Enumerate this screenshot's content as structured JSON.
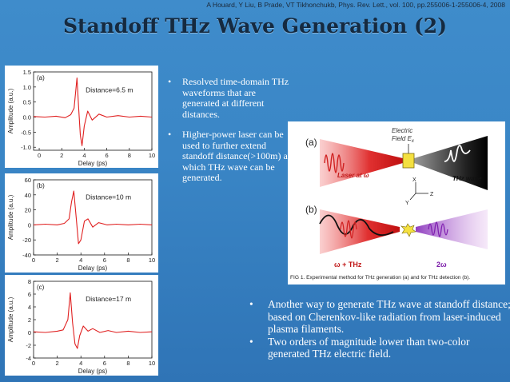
{
  "citation": "A Houard, Y Liu, B Prade, VT Tikhonchukb, Phys. Rev. Lett., vol.  100, pp.255006-1-255006-4, 2008",
  "title": "Standoff THz Wave Generation (2)",
  "bullets_top": [
    "Resolved time-domain THz waveforms that are generated at different distances.",
    "Higher-power laser can be used to further extend standoff distance(>100m) at which THz wave can be generated."
  ],
  "bullets_bottom": [
    "Another way to generate THz wave at standoff distance; based on Cherenkov-like radiation from laser-induced plasma filaments.",
    "Two orders of magnitude lower than two-color generated THz electric field."
  ],
  "bullet_symbol": "•",
  "colors": {
    "background": "#3a86c6",
    "title": "#152a40",
    "trace": "#e02020",
    "beam": "#e63030"
  },
  "figure": {
    "panel_a": "(a)",
    "panel_b": "(b)",
    "field_label_1": "Electric",
    "field_label_2": "Field E",
    "field_subscript": "x",
    "laser_label": "Laser at ω",
    "thz_label": "THz wave",
    "axis_x": "X",
    "axis_y": "Y",
    "axis_z": "Z",
    "omega_thz": "ω + THz",
    "two_omega": "2ω",
    "caption": "FIG 1. Experimental method for THz generation (a) and for THz detection (b)."
  },
  "chart_data": [
    {
      "type": "line",
      "panel": "(a)",
      "annotation": "Distance=6.5 m",
      "xlabel": "Delay (ps)",
      "ylabel": "Amplitude (a.u.)",
      "xlim": [
        -0.5,
        10
      ],
      "ylim": [
        -1.1,
        1.5
      ],
      "xticks": [
        "0",
        "2",
        "4",
        "6",
        "8",
        "10"
      ],
      "yticks": [
        "1.5",
        "1.0",
        "0.5",
        "0.0",
        "-0.5",
        "-1.0"
      ],
      "ytick_values": [
        1.5,
        1.0,
        0.5,
        0.0,
        -0.5,
        -1.0
      ],
      "xtick_values": [
        0,
        2,
        4,
        6,
        8,
        10
      ],
      "x": [
        -0.5,
        0.5,
        1.5,
        2.3,
        2.8,
        3.1,
        3.35,
        3.5,
        3.65,
        3.8,
        4.0,
        4.3,
        4.7,
        5.3,
        6.0,
        7,
        8,
        9,
        10
      ],
      "y": [
        0.02,
        0.0,
        0.03,
        -0.02,
        0.08,
        0.3,
        1.3,
        0.3,
        -0.6,
        -0.95,
        -0.3,
        0.2,
        -0.1,
        0.1,
        0.0,
        0.05,
        0.0,
        0.03,
        0.0
      ]
    },
    {
      "type": "line",
      "panel": "(b)",
      "annotation": "Distance=10 m",
      "xlabel": "Delay (ps)",
      "ylabel": "Amplitude (a.u.)",
      "xlim": [
        0,
        10
      ],
      "ylim": [
        -40,
        60
      ],
      "xticks": [
        "0",
        "2",
        "4",
        "6",
        "8",
        "10"
      ],
      "yticks": [
        "60",
        "40",
        "20",
        "0",
        "-20",
        "-40"
      ],
      "ytick_values": [
        60,
        40,
        20,
        0,
        -20,
        -40
      ],
      "xtick_values": [
        0,
        2,
        4,
        6,
        8,
        10
      ],
      "x": [
        0,
        1,
        2,
        2.6,
        3.0,
        3.2,
        3.4,
        3.6,
        3.8,
        4.0,
        4.3,
        4.6,
        5.0,
        5.5,
        6.2,
        7,
        8,
        9,
        10
      ],
      "y": [
        0,
        1,
        0,
        2,
        8,
        30,
        45,
        10,
        -25,
        -20,
        5,
        8,
        -3,
        3,
        0,
        1,
        0,
        1,
        0
      ]
    },
    {
      "type": "line",
      "panel": "(c)",
      "annotation": "Distance=17 m",
      "xlabel": "Delay (ps)",
      "ylabel": "Amplitude (a.u.)",
      "xlim": [
        0,
        10
      ],
      "ylim": [
        -4,
        8
      ],
      "xticks": [
        "0",
        "2",
        "4",
        "6",
        "8",
        "10"
      ],
      "yticks": [
        "8",
        "6",
        "4",
        "2",
        "0",
        "-2",
        "-4"
      ],
      "ytick_values": [
        8,
        6,
        4,
        2,
        0,
        -2,
        -4
      ],
      "xtick_values": [
        0,
        2,
        4,
        6,
        8,
        10
      ],
      "x": [
        0,
        1,
        2,
        2.5,
        2.9,
        3.1,
        3.3,
        3.5,
        3.7,
        3.9,
        4.2,
        4.6,
        5.0,
        5.6,
        6.3,
        7,
        8,
        9,
        10
      ],
      "y": [
        0.1,
        0.0,
        0.2,
        0.4,
        2.0,
        6.2,
        1.5,
        -1.8,
        -2.5,
        -0.5,
        1.0,
        0.2,
        0.6,
        0.0,
        0.3,
        0.0,
        0.2,
        0.0,
        0.1
      ]
    }
  ]
}
